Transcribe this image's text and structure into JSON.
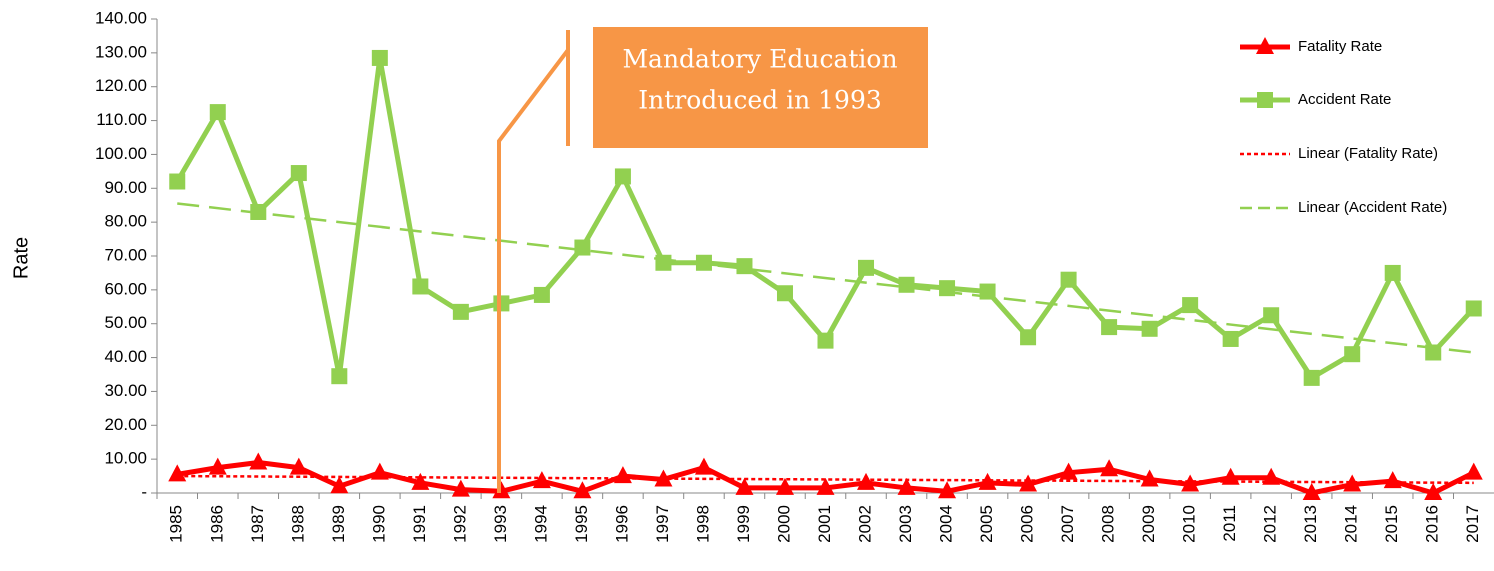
{
  "chart_data": {
    "type": "line",
    "y_label": "Rate",
    "categories": [
      "1985",
      "1986",
      "1987",
      "1988",
      "1989",
      "1990",
      "1991",
      "1992",
      "1993",
      "1994",
      "1995",
      "1996",
      "1997",
      "1998",
      "1999",
      "2000",
      "2001",
      "2002",
      "2003",
      "2004",
      "2005",
      "2006",
      "2007",
      "2008",
      "2009",
      "2010",
      "2011",
      "2012",
      "2013",
      "2014",
      "2015",
      "2016",
      "2017"
    ],
    "series": [
      {
        "name": "Fatality Rate",
        "color": "#ff0000",
        "marker": "triangle",
        "values": [
          5.5,
          7.5,
          9,
          7.5,
          2,
          6,
          3,
          1,
          0.5,
          3.5,
          0.5,
          5,
          4,
          7.5,
          1.5,
          1.5,
          1.5,
          3,
          1.5,
          0.5,
          3,
          2.5,
          6,
          7,
          4,
          2.5,
          4.5,
          4.5,
          0,
          2.5,
          3.5,
          0,
          6
        ]
      },
      {
        "name": "Accident Rate",
        "color": "#92d050",
        "marker": "square",
        "values": [
          92,
          112.5,
          83,
          94.5,
          34.5,
          128.5,
          61,
          53.5,
          56,
          58.5,
          72.5,
          93.5,
          68,
          68,
          67,
          59,
          45,
          66.5,
          61.5,
          60.5,
          59.5,
          46,
          63,
          49,
          48.5,
          55.5,
          45.5,
          52.5,
          34,
          41,
          65,
          41.5,
          54.5
        ]
      }
    ],
    "trendlines": [
      {
        "name": "Linear (Fatality Rate)",
        "color": "#ff0000",
        "dash": "4 3",
        "start": 5,
        "end": 3
      },
      {
        "name": "Linear (Accident Rate)",
        "color": "#92d050",
        "dash": "22 10",
        "start": 85.5,
        "end": 41.5
      }
    ],
    "annotation": [
      "Mandatory Education",
      "Introduced in 1993"
    ],
    "ylim": [
      0,
      140
    ],
    "yticks": [
      {
        "value": 0,
        "label": "-"
      },
      {
        "value": 10,
        "label": "10.00"
      },
      {
        "value": 20,
        "label": "20.00"
      },
      {
        "value": 30,
        "label": "30.00"
      },
      {
        "value": 40,
        "label": "40.00"
      },
      {
        "value": 50,
        "label": "50.00"
      },
      {
        "value": 60,
        "label": "60.00"
      },
      {
        "value": 70,
        "label": "70.00"
      },
      {
        "value": 80,
        "label": "80.00"
      },
      {
        "value": 90,
        "label": "90.00"
      },
      {
        "value": 100,
        "label": "100.00"
      },
      {
        "value": 110,
        "label": "110.00"
      },
      {
        "value": 120,
        "label": "120.00"
      },
      {
        "value": 130,
        "label": "130.00"
      },
      {
        "value": 140,
        "label": "140.00"
      }
    ],
    "grid": false,
    "legend": "upper right"
  }
}
